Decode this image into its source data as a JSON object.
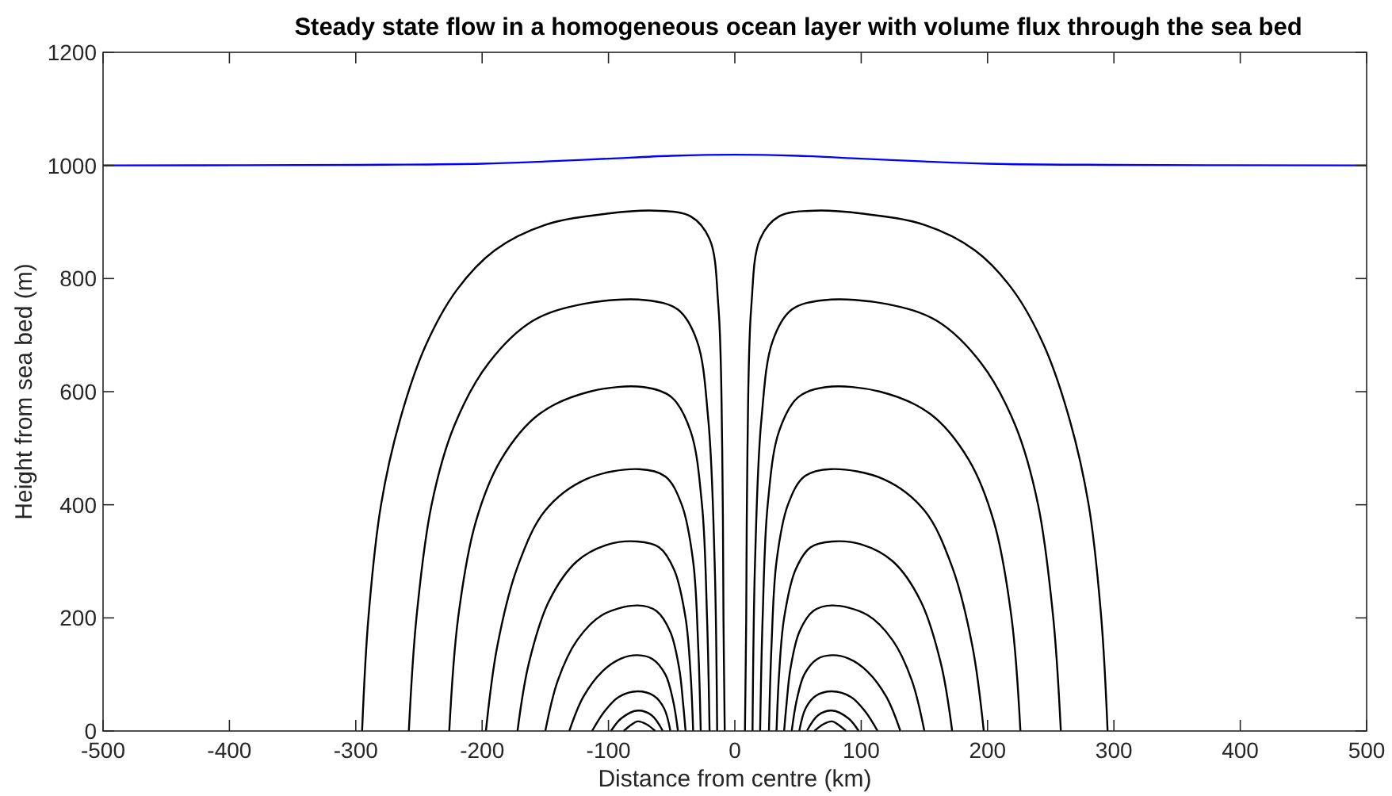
{
  "chart_data": {
    "type": "line",
    "title": "Steady state flow in a homogeneous ocean layer with volume flux through the sea bed",
    "xlabel": "Distance from centre (km)",
    "ylabel": "Height from sea bed (m)",
    "xlim": [
      -500,
      500
    ],
    "ylim": [
      0,
      1200
    ],
    "xticks": [
      -500,
      -400,
      -300,
      -200,
      -100,
      0,
      100,
      200,
      300,
      400,
      500
    ],
    "yticks": [
      0,
      200,
      400,
      600,
      800,
      1000,
      1200
    ],
    "grid": false,
    "marker": "none",
    "line_style": "solid",
    "series": [
      {
        "type": "line",
        "color": "#0000ff",
        "x": [
          -500,
          -300,
          -200,
          -150,
          -100,
          -50,
          0,
          50,
          100,
          150,
          200,
          300,
          500
        ],
        "values": [
          1000,
          1001,
          1003,
          1007,
          1012,
          1017,
          1019,
          1017,
          1012,
          1007,
          1003,
          1001,
          1000
        ]
      },
      {
        "type": "line",
        "color": "#000000",
        "x": [
          -295,
          -290,
          -280,
          -265,
          -245,
          -220,
          -190,
          -150,
          -100,
          -63,
          -35,
          -20,
          -13,
          -10,
          -9,
          -8
        ],
        "values": [
          0,
          200,
          400,
          550,
          680,
          780,
          850,
          895,
          915,
          920,
          910,
          870,
          750,
          500,
          200,
          0
        ]
      },
      {
        "type": "line",
        "color": "#000000",
        "x": [
          -258,
          -252,
          -240,
          -222,
          -195,
          -160,
          -120,
          -71,
          -45,
          -30,
          -21,
          -16,
          -14
        ],
        "values": [
          0,
          200,
          400,
          540,
          650,
          725,
          755,
          762,
          745,
          690,
          550,
          300,
          0
        ]
      },
      {
        "type": "line",
        "color": "#000000",
        "x": [
          -226,
          -219,
          -205,
          -185,
          -155,
          -115,
          -72,
          -50,
          -35,
          -26,
          -22,
          -20
        ],
        "values": [
          0,
          200,
          370,
          480,
          560,
          600,
          608,
          590,
          530,
          400,
          200,
          0
        ]
      },
      {
        "type": "line",
        "color": "#000000",
        "x": [
          -197,
          -188,
          -172,
          -150,
          -118,
          -76,
          -55,
          -42,
          -33,
          -29,
          -27
        ],
        "values": [
          0,
          150,
          290,
          390,
          445,
          463,
          450,
          400,
          300,
          150,
          0
        ]
      },
      {
        "type": "line",
        "color": "#000000",
        "x": [
          -172,
          -163,
          -147,
          -125,
          -100,
          -77,
          -60,
          -48,
          -39,
          -35,
          -33
        ],
        "values": [
          0,
          120,
          230,
          300,
          330,
          335,
          325,
          285,
          200,
          100,
          0
        ]
      },
      {
        "type": "line",
        "color": "#000000",
        "x": [
          -150,
          -140,
          -125,
          -105,
          -77,
          -62,
          -51,
          -44,
          -41,
          -39
        ],
        "values": [
          0,
          90,
          160,
          205,
          222,
          212,
          175,
          110,
          50,
          0
        ]
      },
      {
        "type": "line",
        "color": "#000000",
        "x": [
          -131,
          -120,
          -105,
          -90,
          -77,
          -65,
          -55,
          -49,
          -45
        ],
        "values": [
          0,
          60,
          105,
          128,
          134,
          127,
          100,
          55,
          0
        ]
      },
      {
        "type": "line",
        "color": "#000000",
        "x": [
          -113,
          -103,
          -92,
          -77,
          -64,
          -56,
          -51
        ],
        "values": [
          0,
          35,
          60,
          70,
          62,
          40,
          0
        ]
      },
      {
        "type": "line",
        "color": "#000000",
        "x": [
          -98,
          -90,
          -77,
          -66,
          -57
        ],
        "values": [
          0,
          22,
          36,
          28,
          0
        ]
      },
      {
        "type": "line",
        "color": "#000000",
        "x": [
          -88,
          -82,
          -77,
          -70,
          -63
        ],
        "values": [
          0,
          11,
          17,
          12,
          0
        ]
      },
      {
        "type": "line",
        "color": "#000000",
        "x": [
          295,
          290,
          280,
          265,
          245,
          220,
          190,
          150,
          100,
          63,
          35,
          20,
          13,
          10,
          9,
          8
        ],
        "values": [
          0,
          200,
          400,
          550,
          680,
          780,
          850,
          895,
          915,
          920,
          910,
          870,
          750,
          500,
          200,
          0
        ]
      },
      {
        "type": "line",
        "color": "#000000",
        "x": [
          258,
          252,
          240,
          222,
          195,
          160,
          120,
          71,
          45,
          30,
          21,
          16,
          14
        ],
        "values": [
          0,
          200,
          400,
          540,
          650,
          725,
          755,
          762,
          745,
          690,
          550,
          300,
          0
        ]
      },
      {
        "type": "line",
        "color": "#000000",
        "x": [
          226,
          219,
          205,
          185,
          155,
          115,
          72,
          50,
          35,
          26,
          22,
          20
        ],
        "values": [
          0,
          200,
          370,
          480,
          560,
          600,
          608,
          590,
          530,
          400,
          200,
          0
        ]
      },
      {
        "type": "line",
        "color": "#000000",
        "x": [
          197,
          188,
          172,
          150,
          118,
          76,
          55,
          42,
          33,
          29,
          27
        ],
        "values": [
          0,
          150,
          290,
          390,
          445,
          463,
          450,
          400,
          300,
          150,
          0
        ]
      },
      {
        "type": "line",
        "color": "#000000",
        "x": [
          172,
          163,
          147,
          125,
          100,
          77,
          60,
          48,
          39,
          35,
          33
        ],
        "values": [
          0,
          120,
          230,
          300,
          330,
          335,
          325,
          285,
          200,
          100,
          0
        ]
      },
      {
        "type": "line",
        "color": "#000000",
        "x": [
          150,
          140,
          125,
          105,
          77,
          62,
          51,
          44,
          41,
          39
        ],
        "values": [
          0,
          90,
          160,
          205,
          222,
          212,
          175,
          110,
          50,
          0
        ]
      },
      {
        "type": "line",
        "color": "#000000",
        "x": [
          131,
          120,
          105,
          90,
          77,
          65,
          55,
          49,
          45
        ],
        "values": [
          0,
          60,
          105,
          128,
          134,
          127,
          100,
          55,
          0
        ]
      },
      {
        "type": "line",
        "color": "#000000",
        "x": [
          113,
          103,
          92,
          77,
          64,
          56,
          51
        ],
        "values": [
          0,
          35,
          60,
          70,
          62,
          40,
          0
        ]
      },
      {
        "type": "line",
        "color": "#000000",
        "x": [
          98,
          90,
          77,
          66,
          57
        ],
        "values": [
          0,
          22,
          36,
          28,
          0
        ]
      },
      {
        "type": "line",
        "color": "#000000",
        "x": [
          88,
          82,
          77,
          70,
          63
        ],
        "values": [
          0,
          11,
          17,
          12,
          0
        ]
      }
    ]
  }
}
